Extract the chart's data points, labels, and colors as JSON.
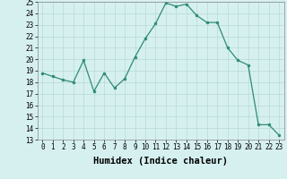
{
  "x": [
    0,
    1,
    2,
    3,
    4,
    5,
    6,
    7,
    8,
    9,
    10,
    11,
    12,
    13,
    14,
    15,
    16,
    17,
    18,
    19,
    20,
    21,
    22,
    23
  ],
  "y": [
    18.8,
    18.5,
    18.2,
    18.0,
    19.9,
    17.2,
    18.8,
    17.5,
    18.3,
    20.2,
    21.8,
    23.1,
    24.9,
    24.6,
    24.8,
    23.8,
    23.2,
    23.2,
    21.0,
    19.9,
    19.5,
    14.3,
    14.3,
    13.4
  ],
  "line_color": "#2e8b74",
  "marker_color": "#2e8b74",
  "bg_color": "#d6f0f0",
  "grid_color": "#b8d8d8",
  "xlabel": "Humidex (Indice chaleur)",
  "ylim": [
    13,
    25
  ],
  "xlim": [
    -0.5,
    23.5
  ],
  "yticks": [
    13,
    14,
    15,
    16,
    17,
    18,
    19,
    20,
    21,
    22,
    23,
    24,
    25
  ],
  "xticks": [
    0,
    1,
    2,
    3,
    4,
    5,
    6,
    7,
    8,
    9,
    10,
    11,
    12,
    13,
    14,
    15,
    16,
    17,
    18,
    19,
    20,
    21,
    22,
    23
  ],
  "tick_fontsize": 5.5,
  "label_fontsize": 7.5
}
